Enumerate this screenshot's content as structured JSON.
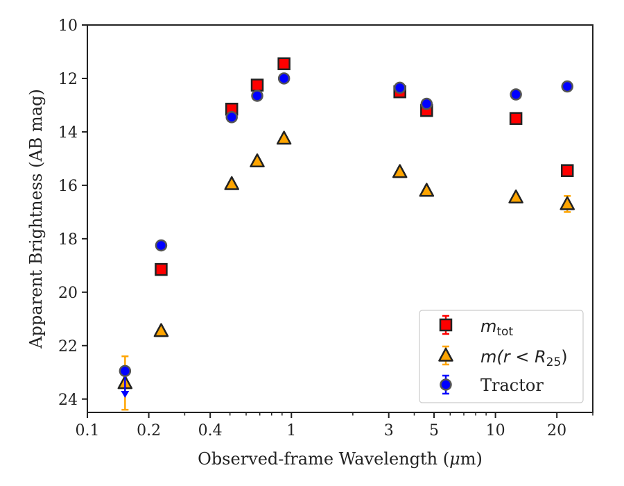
{
  "chart_data": {
    "type": "scatter",
    "title": "",
    "xlabel_main": "Observed-frame Wavelength (",
    "xlabel_mu": "μ",
    "xlabel_unit": "m)",
    "ylabel": "Apparent Brightness (AB mag)",
    "xscale": "log",
    "xlim": [
      0.1,
      30
    ],
    "ylim": [
      24.5,
      10
    ],
    "y_inverted": true,
    "x_ticks": [
      0.1,
      0.2,
      0.4,
      1,
      3,
      5,
      10,
      20
    ],
    "x_tick_labels": [
      "0.1",
      "0.2",
      "0.4",
      "1",
      "3",
      "5",
      "10",
      "20"
    ],
    "y_ticks": [
      10,
      12,
      14,
      16,
      18,
      20,
      22,
      24
    ],
    "y_tick_labels": [
      "10",
      "12",
      "14",
      "16",
      "18",
      "20",
      "22",
      "24"
    ],
    "legend_position": "lower-right",
    "legend": {
      "mtot_m": "m",
      "mtot_sub": "tot",
      "mr_prefix": "m(r < R",
      "mr_sub": "25",
      "mr_suffix": ")",
      "tractor": "Tractor"
    },
    "series": [
      {
        "key": "mtot",
        "marker": "square",
        "color": "#ff0000",
        "errcolor": "#ff0000",
        "x": [
          0.23,
          0.51,
          0.68,
          0.92,
          3.4,
          4.6,
          12.6,
          22.5
        ],
        "y": [
          19.15,
          13.15,
          12.25,
          11.45,
          12.5,
          13.2,
          13.5,
          15.45
        ],
        "yerr": [
          0.05,
          0.05,
          0.05,
          0.05,
          0.05,
          0.05,
          0.05,
          0.05
        ]
      },
      {
        "key": "mr25",
        "marker": "triangle",
        "color": "#ffa500",
        "errcolor": "#ffa500",
        "x": [
          0.153,
          0.23,
          0.51,
          0.68,
          0.92,
          3.4,
          4.6,
          12.6,
          22.5
        ],
        "y": [
          23.4,
          21.45,
          15.95,
          15.1,
          14.25,
          15.5,
          16.2,
          16.45,
          16.7
        ],
        "yerr": [
          1.0,
          0.05,
          0.05,
          0.05,
          0.05,
          0.05,
          0.05,
          0.05,
          0.3
        ]
      },
      {
        "key": "tractor",
        "marker": "circle",
        "color": "#0000ff",
        "errcolor": "#0000ff",
        "x": [
          0.153,
          0.23,
          0.51,
          0.68,
          0.92,
          3.4,
          4.6,
          12.6,
          22.5
        ],
        "y": [
          22.95,
          18.25,
          13.45,
          12.65,
          12.0,
          12.35,
          12.95,
          12.6,
          12.3
        ],
        "yerr": [
          0.1,
          0.05,
          0.05,
          0.05,
          0.05,
          0.05,
          0.05,
          0.05,
          0.05
        ],
        "upper_limit_arrow": [
          0.153,
          23.85
        ]
      }
    ]
  }
}
